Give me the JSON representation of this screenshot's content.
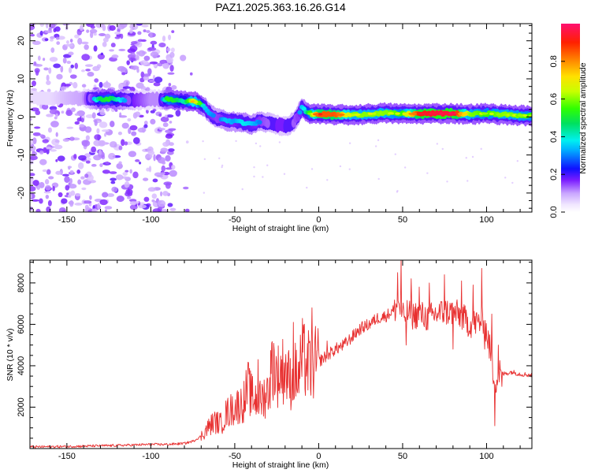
{
  "title": "PAZ1.2025.363.16.26.G14",
  "chart_data": [
    {
      "type": "heatmap",
      "title": "PAZ1.2025.363.16.26.G14",
      "xlabel": "Height of straight line (km)",
      "ylabel": "Frequency (Hz)",
      "xlim": [
        -172,
        127
      ],
      "ylim": [
        -25,
        24.5
      ],
      "xticks": [
        -150,
        -100,
        -50,
        0,
        50,
        100
      ],
      "xtick_labels": [
        "-150",
        "-100",
        "-50",
        "0",
        "50",
        "100"
      ],
      "yticks": [
        -20,
        -10,
        0,
        10,
        20
      ],
      "ytick_labels": [
        "-20",
        "-10",
        "0",
        "10",
        "20"
      ],
      "colorbar": {
        "label": "Normalized spectral amplitude",
        "range": [
          0.0,
          1.0
        ],
        "ticks": [
          0.0,
          0.2,
          0.4,
          0.6,
          0.8
        ],
        "tick_labels": [
          "0.0",
          "0.2",
          "0.4",
          "0.6",
          "0.8"
        ]
      },
      "ridge": {
        "heights_km": [
          -172,
          -160,
          -150,
          -140,
          -130,
          -125,
          -120,
          -110,
          -100,
          -95,
          -90,
          -85,
          -80,
          -75,
          -72,
          -68,
          -64,
          -60,
          -55,
          -50,
          -45,
          -40,
          -35,
          -30,
          -25,
          -20,
          -15,
          -12,
          -10,
          -8,
          -5,
          0,
          10,
          20,
          30,
          40,
          50,
          60,
          70,
          80,
          90,
          100,
          110,
          120,
          127
        ],
        "frequency_hz": [
          5,
          5,
          5,
          4.8,
          4.6,
          4.7,
          4.6,
          4.4,
          4.5,
          4.6,
          4.6,
          4.4,
          4.1,
          4.0,
          3.8,
          2.5,
          0.5,
          -0.5,
          -1.0,
          -1.2,
          -1.5,
          -2.0,
          -1.2,
          -1.5,
          -2.0,
          -2.5,
          -1.5,
          0.5,
          2.5,
          1.5,
          0.8,
          0.7,
          0.6,
          0.5,
          0.8,
          1.0,
          0.8,
          0.8,
          0.9,
          0.9,
          0.7,
          0.9,
          0.6,
          0.4,
          0.3
        ],
        "amplitude": [
          0.05,
          0.05,
          0.08,
          0.1,
          0.48,
          0.52,
          0.42,
          0.2,
          0.12,
          0.12,
          0.55,
          0.5,
          0.4,
          0.68,
          0.6,
          0.35,
          0.32,
          0.28,
          0.35,
          0.32,
          0.38,
          0.35,
          0.3,
          0.25,
          0.2,
          0.2,
          0.25,
          0.3,
          0.35,
          0.4,
          0.55,
          0.85,
          0.85,
          0.6,
          0.6,
          0.6,
          0.55,
          0.9,
          0.95,
          0.95,
          0.6,
          0.55,
          0.6,
          0.58,
          0.55
        ]
      },
      "noise_floor_region_km": [
        -172,
        -75
      ]
    },
    {
      "type": "line",
      "xlabel": "Height of straight line (km)",
      "ylabel": "SNR (10 * v/v)",
      "xlim": [
        -172,
        127
      ],
      "ylim": [
        0,
        9100
      ],
      "xticks": [
        -150,
        -100,
        -50,
        0,
        50,
        100
      ],
      "xtick_labels": [
        "-150",
        "-100",
        "-50",
        "0",
        "50",
        "100"
      ],
      "yticks": [
        2000,
        4000,
        6000,
        8000
      ],
      "ytick_labels": [
        "2000",
        "4000",
        "6000",
        "8000"
      ],
      "line_color": "#e83030",
      "series": [
        {
          "name": "SNR",
          "x": [
            -172,
            -150,
            -120,
            -100,
            -90,
            -80,
            -75,
            -70,
            -65,
            -62,
            -58,
            -55,
            -50,
            -45,
            -42,
            -40,
            -35,
            -30,
            -27,
            -25,
            -20,
            -17,
            -15,
            -12,
            -10,
            -5,
            0,
            5,
            10,
            15,
            20,
            25,
            30,
            35,
            40,
            45,
            48,
            50,
            52,
            55,
            60,
            65,
            70,
            75,
            80,
            85,
            90,
            95,
            98,
            100,
            102,
            104,
            106,
            108,
            110,
            115,
            120,
            127
          ],
          "y": [
            80,
            100,
            150,
            200,
            200,
            250,
            350,
            600,
            1100,
            1300,
            1200,
            1700,
            2000,
            2200,
            3000,
            2500,
            2300,
            2800,
            4200,
            3500,
            3900,
            3200,
            3700,
            3400,
            4400,
            3900,
            4200,
            4500,
            4800,
            5000,
            5400,
            5800,
            6000,
            6300,
            6400,
            6700,
            7000,
            6300,
            6600,
            6400,
            6500,
            6300,
            6500,
            6600,
            6600,
            6400,
            6000,
            6100,
            6200,
            5600,
            4800,
            3600,
            3200,
            3800,
            3600,
            3700,
            3600,
            3550
          ],
          "spikes": [
            [
              -44,
              2300
            ],
            [
              -36,
              4300
            ],
            [
              -28,
              5100
            ],
            [
              -15,
              6100
            ],
            [
              -4,
              6800
            ],
            [
              5,
              5200
            ],
            [
              22,
              5800
            ],
            [
              38,
              6500
            ],
            [
              47,
              8500
            ],
            [
              49,
              9100
            ],
            [
              52,
              5000
            ],
            [
              55,
              8200
            ],
            [
              60,
              7800
            ],
            [
              66,
              8000
            ],
            [
              75,
              8400
            ],
            [
              80,
              4800
            ],
            [
              85,
              8100
            ],
            [
              92,
              7900
            ],
            [
              97,
              8700
            ],
            [
              99,
              4800
            ],
            [
              103,
              6500
            ],
            [
              105,
              1100
            ],
            [
              107,
              5000
            ],
            [
              109,
              3000
            ]
          ]
        }
      ]
    }
  ]
}
